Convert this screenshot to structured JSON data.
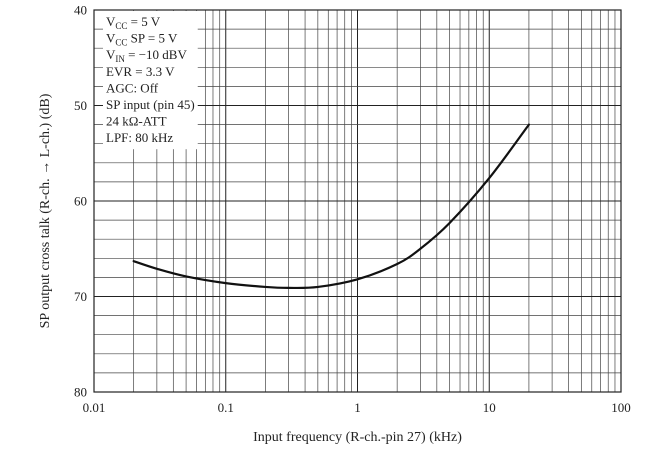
{
  "chart_data": {
    "type": "line",
    "xscale": "log",
    "xlim": [
      0.01,
      100
    ],
    "ylim": [
      40,
      80
    ],
    "y_inverted": true,
    "grid": true,
    "xlabel": "Input frequency (R-ch.-pin 27)  (kHz)",
    "ylabel": "SP output cross talk (R-ch. → L-ch.)  (dB)",
    "x_ticks": [
      0.01,
      0.1,
      1,
      10,
      100
    ],
    "x_tick_labels": [
      "0.01",
      "0.1",
      "1",
      "10",
      "100"
    ],
    "y_ticks": [
      40,
      50,
      60,
      70,
      80
    ],
    "y_tick_labels": [
      "40",
      "50",
      "60",
      "70",
      "80"
    ],
    "series": [
      {
        "x": [
          0.02,
          0.03,
          0.05,
          0.1,
          0.2,
          0.3,
          0.5,
          1,
          2,
          3,
          5,
          10,
          20
        ],
        "y": [
          66.3,
          67.1,
          67.9,
          68.6,
          69.0,
          69.1,
          69.0,
          68.2,
          66.6,
          65.0,
          62.3,
          57.6,
          52.0
        ]
      }
    ],
    "annotation": {
      "lines": [
        {
          "base": "V",
          "sub": "CC",
          "rest": " = 5 V"
        },
        {
          "base": "V",
          "sub": "CC",
          "rest": " SP = 5 V"
        },
        {
          "base": "V",
          "sub": "IN",
          "rest": " = −10 dBV"
        },
        {
          "base": "EVR = 3.3 V",
          "sub": "",
          "rest": ""
        },
        {
          "base": "AGC: Off",
          "sub": "",
          "rest": ""
        },
        {
          "base": "SP input (pin 45)",
          "sub": "",
          "rest": ""
        },
        {
          "base": "24 kΩ-ATT",
          "sub": "",
          "rest": ""
        },
        {
          "base": "LPF: 80 kHz",
          "sub": "",
          "rest": ""
        }
      ]
    }
  }
}
